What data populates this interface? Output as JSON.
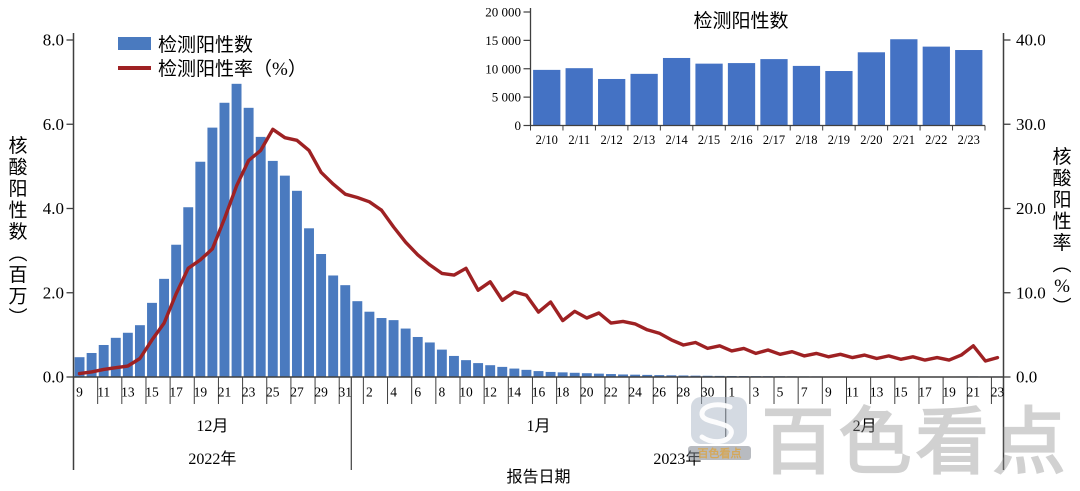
{
  "page": {
    "background": "#ffffff"
  },
  "legend": {
    "bar_label": "检测阳性数",
    "line_label": "检测阳性率（%）"
  },
  "watermark": {
    "big_text": "百色看点",
    "badge_text": "百色看点",
    "logo": "s-swirl-icon"
  },
  "chart_data": [
    {
      "id": "main",
      "type": "bar+line",
      "x_dates": [
        "12/9",
        "12/10",
        "12/11",
        "12/12",
        "12/13",
        "12/14",
        "12/15",
        "12/16",
        "12/17",
        "12/18",
        "12/19",
        "12/20",
        "12/21",
        "12/22",
        "12/23",
        "12/24",
        "12/25",
        "12/26",
        "12/27",
        "12/28",
        "12/29",
        "12/30",
        "12/31",
        "1/1",
        "1/2",
        "1/3",
        "1/4",
        "1/5",
        "1/6",
        "1/7",
        "1/8",
        "1/9",
        "1/10",
        "1/11",
        "1/12",
        "1/13",
        "1/14",
        "1/15",
        "1/16",
        "1/17",
        "1/18",
        "1/19",
        "1/20",
        "1/21",
        "1/22",
        "1/23",
        "1/24",
        "1/25",
        "1/26",
        "1/27",
        "1/28",
        "1/29",
        "1/30",
        "1/31",
        "2/1",
        "2/2",
        "2/3",
        "2/4",
        "2/5",
        "2/6",
        "2/7",
        "2/8",
        "2/9",
        "2/10",
        "2/11",
        "2/12",
        "2/13",
        "2/14",
        "2/15",
        "2/16",
        "2/17",
        "2/18",
        "2/19",
        "2/20",
        "2/21",
        "2/22",
        "2/23"
      ],
      "x_tick_labels": [
        "9",
        "11",
        "13",
        "15",
        "17",
        "19",
        "21",
        "23",
        "25",
        "27",
        "29",
        "31",
        "2",
        "4",
        "6",
        "8",
        "10",
        "12",
        "14",
        "16",
        "18",
        "20",
        "22",
        "24",
        "26",
        "28",
        "30",
        "1",
        "3",
        "5",
        "7",
        "9",
        "11",
        "13",
        "15",
        "17",
        "19",
        "21",
        "23"
      ],
      "series": [
        {
          "name": "检测阳性数",
          "type": "bar",
          "axis": "left",
          "unit": "百万",
          "color": "#4a7abf",
          "values": [
            0.47,
            0.57,
            0.76,
            0.93,
            1.05,
            1.23,
            1.76,
            2.33,
            3.14,
            4.03,
            5.11,
            5.92,
            6.51,
            6.96,
            6.39,
            5.7,
            5.13,
            4.78,
            4.42,
            3.53,
            2.92,
            2.41,
            2.18,
            1.8,
            1.55,
            1.4,
            1.35,
            1.15,
            0.95,
            0.82,
            0.65,
            0.5,
            0.4,
            0.33,
            0.28,
            0.24,
            0.2,
            0.17,
            0.14,
            0.12,
            0.11,
            0.1,
            0.09,
            0.08,
            0.07,
            0.06,
            0.055,
            0.05,
            0.045,
            0.04,
            0.036,
            0.032,
            0.029,
            0.026,
            0.024,
            0.022,
            0.02,
            0.019,
            0.018,
            0.016,
            0.015,
            0.014,
            0.012,
            0.0098,
            0.0101,
            0.0082,
            0.0091,
            0.0119,
            0.0109,
            0.011,
            0.0117,
            0.0105,
            0.0096,
            0.0129,
            0.0152,
            0.0139,
            0.0133
          ]
        },
        {
          "name": "检测阳性率（%）",
          "type": "line",
          "axis": "right",
          "color": "#9e2123",
          "values": [
            0.4,
            0.6,
            0.9,
            1.1,
            1.3,
            2.2,
            4.4,
            6.4,
            9.9,
            12.9,
            13.9,
            15.2,
            18.8,
            22.7,
            25.7,
            26.9,
            29.4,
            28.4,
            28.1,
            26.9,
            24.3,
            22.9,
            21.7,
            21.3,
            20.8,
            19.8,
            17.8,
            16.0,
            14.5,
            13.3,
            12.3,
            12.1,
            12.9,
            10.3,
            11.3,
            9.1,
            10.1,
            9.7,
            7.7,
            8.9,
            6.7,
            7.8,
            7.0,
            7.6,
            6.4,
            6.6,
            6.3,
            5.6,
            5.2,
            4.4,
            3.8,
            4.1,
            3.4,
            3.7,
            3.1,
            3.4,
            2.8,
            3.2,
            2.7,
            3.0,
            2.5,
            2.8,
            2.4,
            2.7,
            2.3,
            2.6,
            2.2,
            2.5,
            2.1,
            2.4,
            2.0,
            2.3,
            2.0,
            2.6,
            3.7,
            1.9,
            2.3
          ]
        }
      ],
      "left_axis": {
        "title": "核酸阳性数（百万）",
        "min": 0,
        "max": 8,
        "tick_labels": [
          "0.0",
          "2.0",
          "4.0",
          "6.0",
          "8.0"
        ]
      },
      "right_axis": {
        "title": "核酸阳性率（%）",
        "min": 0,
        "max": 40,
        "tick_labels": [
          "0.0",
          "10.0",
          "20.0",
          "30.0",
          "40.0"
        ]
      },
      "x_axis": {
        "title": "报告日期",
        "month_labels": [
          "12月",
          "1月",
          "2月"
        ],
        "year_labels": [
          "2022年",
          "2023年"
        ]
      },
      "grid": false
    },
    {
      "id": "inset",
      "type": "bar",
      "title": "检测阳性数",
      "categories": [
        "2/10",
        "2/11",
        "2/12",
        "2/13",
        "2/14",
        "2/15",
        "2/16",
        "2/17",
        "2/18",
        "2/19",
        "2/20",
        "2/21",
        "2/22",
        "2/23"
      ],
      "values": [
        9800,
        10100,
        8200,
        9100,
        11900,
        10900,
        11000,
        11700,
        10500,
        9600,
        12900,
        15200,
        13900,
        13300
      ],
      "ylim": [
        0,
        20000
      ],
      "y_tick_labels": [
        "0",
        "5 000",
        "10 000",
        "15 000",
        "20 000"
      ],
      "bar_color": "#4472c4"
    }
  ]
}
